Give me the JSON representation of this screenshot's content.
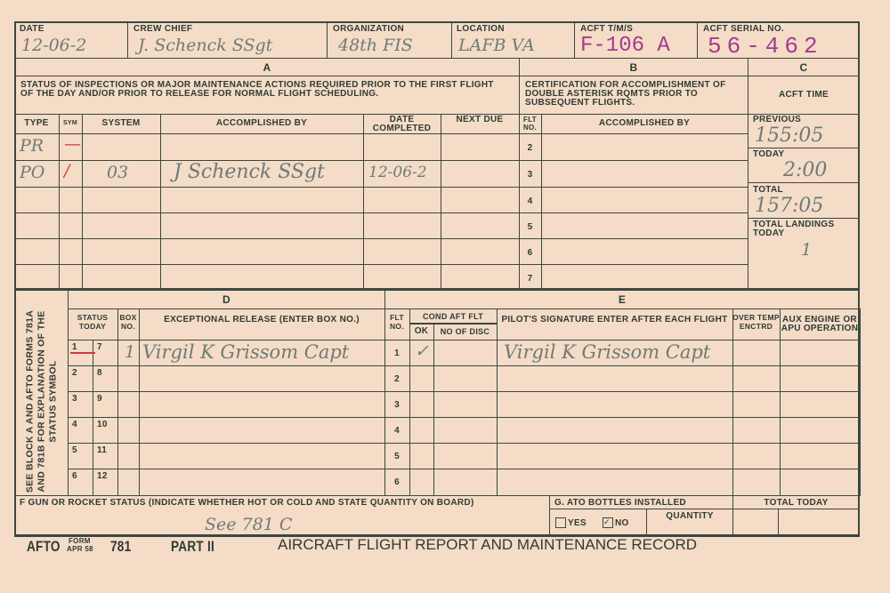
{
  "header": {
    "date_label": "DATE",
    "date": "12-06-2",
    "crew_chief_label": "CREW CHIEF",
    "crew_chief": "J. Schenck SSgt",
    "organization_label": "ORGANIZATION",
    "organization": "48th FIS",
    "location_label": "LOCATION",
    "location": "LAFB VA",
    "acft_tms_label": "ACFT T/M/S",
    "acft_tms": "F-106 A",
    "serial_label": "ACFT SERIAL NO.",
    "serial": "56-462"
  },
  "section_a": {
    "letter": "A",
    "desc": "STATUS OF INSPECTIONS OR MAJOR MAINTENANCE ACTIONS REQUIRED PRIOR TO THE FIRST FLIGHT OF THE DAY AND/OR PRIOR TO RELEASE FOR NORMAL FLIGHT SCHEDULING.",
    "cols": [
      "TYPE",
      "SYM",
      "SYSTEM",
      "ACCOMPLISHED BY",
      "DATE COMPLETED",
      "NEXT DUE"
    ],
    "rows": [
      {
        "type": "PR",
        "sym": "—",
        "system": "",
        "by": "",
        "date": ""
      },
      {
        "type": "PO",
        "sym": "/",
        "system": "03",
        "by": "J Schenck SSgt",
        "date": "12-06-2"
      }
    ]
  },
  "section_b": {
    "letter": "B",
    "desc": "CERTIFICATION FOR ACCOMPLISHMENT OF DOUBLE ASTERISK RQMTS PRIOR TO SUBSEQUENT FLIGHTS.",
    "flt_label": "FLT NO.",
    "by_label": "ACCOMPLISHED BY",
    "flights": [
      "2",
      "3",
      "4",
      "5",
      "6",
      "7"
    ]
  },
  "section_c": {
    "letter": "C",
    "title": "ACFT TIME",
    "previous_label": "PREVIOUS",
    "previous": "155:05",
    "today_label": "TODAY",
    "today": "2:00",
    "total_label": "TOTAL",
    "total": "157:05",
    "landings_label": "TOTAL LANDINGS TODAY",
    "landings": "1"
  },
  "side_label": "SEE BLOCK A AND AFTO FORMS 781A AND 781B FOR EXPLANATION OF THE STATUS SYMBOL",
  "section_d": {
    "letter": "D",
    "status_label": "STATUS TODAY",
    "box_label": "BOX NO.",
    "release_label": "EXCEPTIONAL RELEASE (ENTER BOX NO.)",
    "status_pairs": [
      [
        "1",
        "7"
      ],
      [
        "2",
        "8"
      ],
      [
        "3",
        "9"
      ],
      [
        "4",
        "10"
      ],
      [
        "5",
        "11"
      ],
      [
        "6",
        "12"
      ]
    ],
    "box_entry": "1",
    "release_entry": "Virgil K Grissom Capt"
  },
  "section_e": {
    "letter": "E",
    "flt_label": "FLT NO.",
    "cond_label": "COND AFT FLT",
    "ok_label": "OK",
    "disc_label": "NO OF DISC",
    "pilot_label": "PILOT'S SIGNATURE ENTER AFTER EACH FLIGHT",
    "overtemp_label": "OVER TEMP ENCTRD",
    "aux_label": "AUX ENGINE OR APU OPERATION",
    "flights": [
      "1",
      "2",
      "3",
      "4",
      "5",
      "6"
    ],
    "ok_entry": "✓",
    "pilot_entry": "Virgil K Grissom Capt"
  },
  "section_f": {
    "label": "F GUN OR ROCKET STATUS (INDICATE WHETHER HOT OR COLD AND STATE QUANTITY ON BOARD)",
    "entry": "See 781 C"
  },
  "section_g": {
    "label": "G. ATO BOTTLES INSTALLED",
    "yes": "YES",
    "no": "NO",
    "quantity_label": "QUANTITY",
    "selected": "NO"
  },
  "total_today_label": "TOTAL TODAY",
  "footer": {
    "afto": "AFTO",
    "form": "FORM",
    "date": "APR 58",
    "number": "781",
    "part": "PART II",
    "title": "AIRCRAFT FLIGHT REPORT AND MAINTENANCE RECORD"
  },
  "colors": {
    "paper": "#f4dcc6",
    "ink": "#3a4842",
    "stamp": "#a23c8c",
    "red_mark": "#d23a3a"
  }
}
